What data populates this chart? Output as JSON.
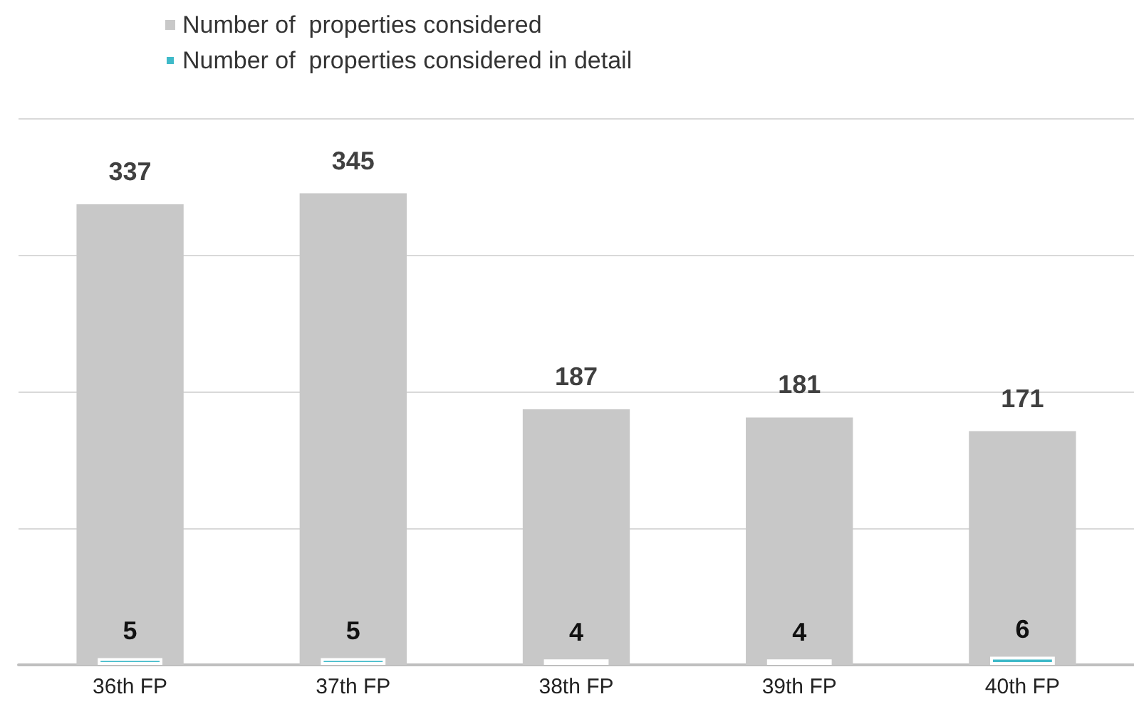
{
  "chart_data": {
    "type": "bar",
    "categories": [
      "36th FP",
      "37th FP",
      "38th FP",
      "39th FP",
      "40th FP"
    ],
    "series": [
      {
        "name": "Number of  properties considered",
        "color": "#c8c8c8",
        "values": [
          337,
          345,
          187,
          181,
          171
        ]
      },
      {
        "name": "Number of  properties considered in detail",
        "color": "#3fbac9",
        "values": [
          5,
          5,
          4,
          4,
          6
        ]
      }
    ],
    "ylim": [
      0,
      400
    ],
    "yticks": [
      {
        "value": 0,
        "label": null
      },
      {
        "value": 100,
        "label": null
      },
      {
        "value": 200,
        "label": null
      },
      {
        "value": 300,
        "label": null
      },
      {
        "value": 400,
        "label": null
      }
    ],
    "grid": "y",
    "legend": "top",
    "tick_labels": "x",
    "data_labels": true
  }
}
